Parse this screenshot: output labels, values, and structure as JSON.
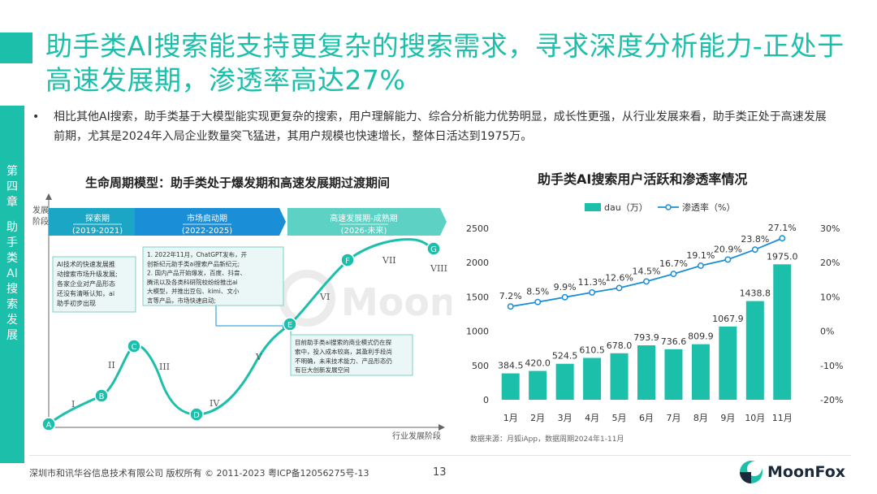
{
  "title": "助手类AI搜索能支持更复杂的搜索需求，寻求深度分析能力-正处于高速发展期，渗透率高达27%",
  "chapter": {
    "number": "第四章",
    "name": "助手类AI搜索发展"
  },
  "bullet": "相比其他AI搜索，助手类基于大模型能实现更复杂的搜索，用户理解能力、综合分析能力优势明显，成长性更强，从行业发展来看，助手类正处于高速发展前期，尤其是2024年入局企业数量突飞猛进，其用户规模也快速增长，整体日活达到1975万。",
  "left_chart": {
    "heading": "生命周期模型：助手类处于爆发期和高速发展期过渡期间",
    "y_axis_label": "发展阶段",
    "x_axis_label": "行业发展阶段",
    "watermark": "MoonFox",
    "phases": [
      {
        "name": "探索期",
        "years": "(2019-2021)",
        "color": "#1aa6c4"
      },
      {
        "name": "市场启动期",
        "years": "(2022-2025)",
        "color": "#1a8ed6"
      },
      {
        "name": "高速发展期-成熟期",
        "years": "(2026-未来)",
        "color": "#5cd1c4"
      }
    ],
    "points": [
      "A",
      "B",
      "C",
      "D",
      "E",
      "F",
      "G"
    ],
    "roman": [
      "I",
      "II",
      "III",
      "IV",
      "V",
      "VI",
      "VII",
      "VIII"
    ],
    "box1": [
      "AI技术的快速发展推",
      "动搜索市场升级发展;",
      "各家企业对产品形态",
      "还没有清晰认知，ai",
      "助手初步出现"
    ],
    "box2": [
      "1.    2022年11月，ChatGPT发布，开",
      "       创新纪元助手类ai搜索产品新纪元;",
      "2.    国内产品开始爆发，百度、抖音、",
      "       腾讯以及各类科研院校纷纷推出ai",
      "       大模型，并推出豆包、kimi、文小",
      "       言等产品，市场快速启动;"
    ],
    "box3": [
      "目前助手类ai搜索的商业模式仍在探",
      "索中，投入成本较高，其盈利手段尚",
      "不明确，未来技术能力、产品形态仍",
      "有巨大创新发展空间"
    ]
  },
  "right_chart": {
    "heading": "助手类AI搜索用户活跃和渗透率情况",
    "source": "数据来源：月狐iApp，数据周期2024年1-11月"
  },
  "chart_data": {
    "type": "bar",
    "title": "助手类AI搜索用户活跃和渗透率情况",
    "categories": [
      "1月",
      "2月",
      "3月",
      "4月",
      "5月",
      "6月",
      "7月",
      "8月",
      "9月",
      "10月",
      "11月"
    ],
    "series": [
      {
        "name": "dau（万）",
        "type": "bar",
        "axis": "left",
        "color": "#1bbfaa",
        "values": [
          384.5,
          420.0,
          524.5,
          610.5,
          678.0,
          793.9,
          736.6,
          809.9,
          1067.9,
          1438.8,
          1975.0
        ],
        "labels": [
          "384.5",
          "420.0",
          "524.5",
          "610.5",
          "678.0",
          "793.9",
          "736.6",
          "809.9",
          "1067.9",
          "1438.8",
          "1975.0"
        ]
      },
      {
        "name": "渗透率（%）",
        "type": "line",
        "axis": "right",
        "color": "#1a8ed6",
        "values": [
          7.2,
          8.5,
          9.9,
          11.3,
          12.6,
          14.5,
          16.7,
          19.1,
          20.9,
          23.8,
          27.1
        ],
        "labels": [
          "7.2%",
          "8.5%",
          "9.9%",
          "11.3%",
          "12.6%",
          "14.5%",
          "16.7%",
          "19.1%",
          "20.9%",
          "23.8%",
          "27.1%"
        ]
      }
    ],
    "ylim": [
      0,
      2500
    ],
    "yticks": [
      "2500",
      "2000",
      "1500",
      "1000",
      "500",
      "0"
    ],
    "y2lim": [
      -20,
      30
    ],
    "y2ticks": [
      "30%",
      "20%",
      "10%",
      "0%",
      "-10%",
      "-20%"
    ],
    "legend_position": "top"
  },
  "footer": {
    "copyright": "深圳市和讯华谷信息技术有限公司 版权所有 © 2011-2023 粤ICP备12056275号-13",
    "page": "13",
    "brand": "MoonFox"
  }
}
